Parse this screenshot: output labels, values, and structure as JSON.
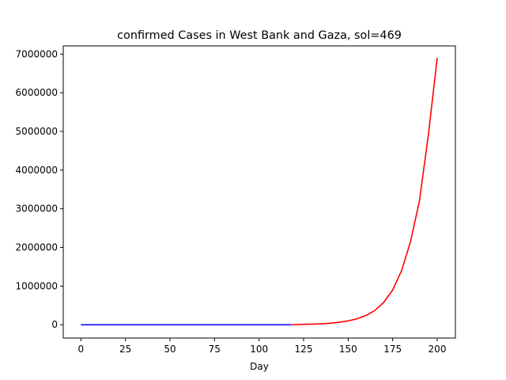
{
  "chart_data": {
    "type": "line",
    "title": "confirmed Cases in West Bank and Gaza, sol=469",
    "xlabel": "Day",
    "ylabel": "",
    "xlim": [
      -9.9,
      210.2
    ],
    "ylim": [
      -343200,
      7211000
    ],
    "x_ticks": [
      0,
      25,
      50,
      75,
      100,
      125,
      150,
      175,
      200
    ],
    "y_ticks": [
      0,
      1000000,
      2000000,
      3000000,
      4000000,
      5000000,
      6000000,
      7000000
    ],
    "grid": false,
    "legend": "none",
    "series": [
      {
        "color": "#ff0000",
        "x": [
          0,
          20,
          40,
          60,
          80,
          100,
          118,
          125,
          130,
          135,
          140,
          145,
          150,
          155,
          160,
          165,
          170,
          175,
          180,
          185,
          190,
          195,
          200
        ],
        "values": [
          0,
          0,
          0,
          0,
          0,
          0,
          0,
          12000,
          17000,
          26000,
          40000,
          65000,
          100000,
          155000,
          240000,
          370000,
          580000,
          900000,
          1400000,
          2150000,
          3200000,
          4900000,
          6900000
        ]
      },
      {
        "color": "#0000ff",
        "x": [
          0,
          20,
          40,
          60,
          80,
          100,
          118
        ],
        "values": [
          0,
          0,
          0,
          0,
          0,
          0,
          0
        ]
      }
    ]
  }
}
